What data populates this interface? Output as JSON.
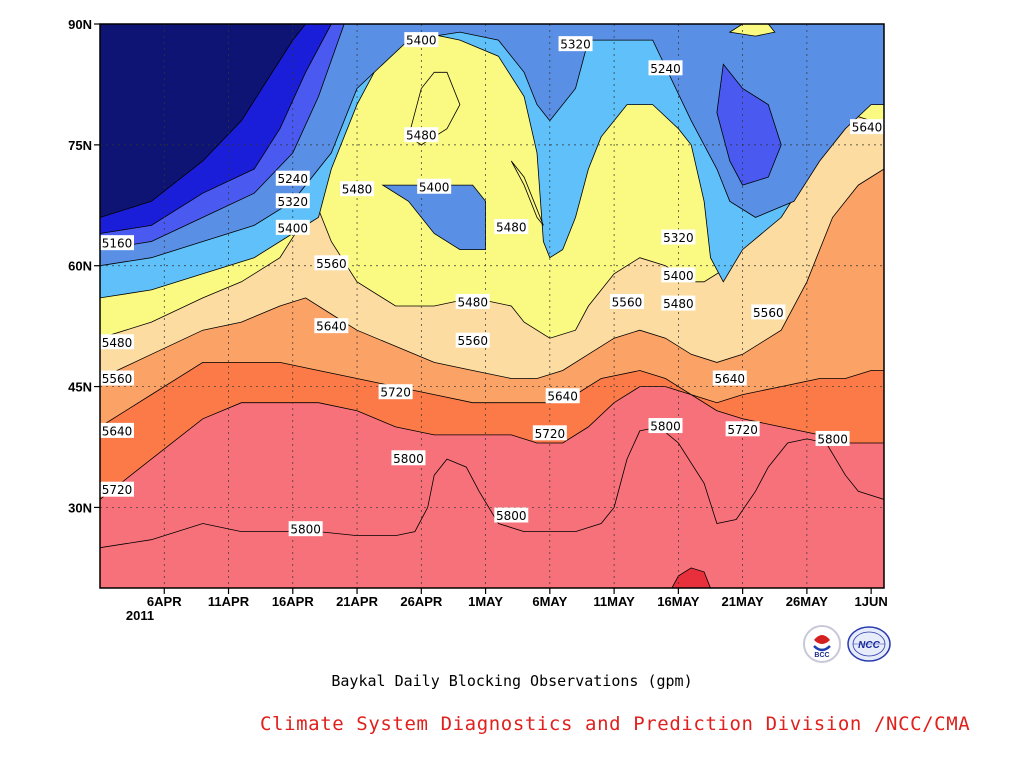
{
  "chart_data": {
    "type": "heatmap",
    "title": "Baykal Daily Blocking Observations (gpm)",
    "xlabel": "",
    "ylabel": "",
    "x_range": [
      "2011-04-01",
      "2011-06-01"
    ],
    "y_range": [
      20,
      90
    ],
    "x_ticks": [
      "6APR",
      "11APR",
      "16APR",
      "21APR",
      "26APR",
      "1MAY",
      "6MAY",
      "11MAY",
      "16MAY",
      "21MAY",
      "26MAY",
      "1JUN"
    ],
    "x_tick_sublabel": "2011",
    "y_ticks": [
      "90N",
      "75N",
      "60N",
      "45N",
      "30N"
    ],
    "y_tick_values": [
      90,
      75,
      60,
      45,
      30
    ],
    "grid": "dotted",
    "contour_levels": [
      5160,
      5240,
      5320,
      5400,
      5480,
      5560,
      5640,
      5720,
      5800,
      5880
    ],
    "level_colors": [
      "#0d1473",
      "#1a1ed8",
      "#4a5af0",
      "#5a8fe6",
      "#5fc0fa",
      "#fafa82",
      "#fcdca0",
      "#fba266",
      "#fb7a48",
      "#f7717a",
      "#e8303c"
    ],
    "contour_labels": [
      {
        "text": "5400",
        "x": "2011-04-26",
        "y": 88.0
      },
      {
        "text": "5320",
        "x": "2011-05-08",
        "y": 87.5
      },
      {
        "text": "5240",
        "x": "2011-05-15",
        "y": 84.5
      },
      {
        "text": "5480",
        "x": "2011-04-26",
        "y": 76.2
      },
      {
        "text": "5240",
        "x": "2011-04-16",
        "y": 70.8
      },
      {
        "text": "5320",
        "x": "2011-04-16",
        "y": 68.0
      },
      {
        "text": "5400",
        "x": "2011-04-16",
        "y": 64.7
      },
      {
        "text": "5160",
        "x": "2011-04-01",
        "y": 62.8
      },
      {
        "text": "5480",
        "x": "2011-04-21",
        "y": 69.5
      },
      {
        "text": "5400",
        "x": "2011-04-27",
        "y": 69.8
      },
      {
        "text": "5480",
        "x": "2011-05-03",
        "y": 64.8
      },
      {
        "text": "5320",
        "x": "2011-05-16",
        "y": 63.5
      },
      {
        "text": "5400",
        "x": "2011-05-16",
        "y": 58.8
      },
      {
        "text": "5480",
        "x": "2011-05-16",
        "y": 55.3
      },
      {
        "text": "5560",
        "x": "2011-04-19",
        "y": 60.3
      },
      {
        "text": "5560",
        "x": "2011-05-12",
        "y": 55.5
      },
      {
        "text": "5480",
        "x": "2011-04-30",
        "y": 55.5
      },
      {
        "text": "5560",
        "x": "2011-05-23",
        "y": 54.2
      },
      {
        "text": "5640",
        "x": "2011-05-31",
        "y": 77.2
      },
      {
        "text": "5480",
        "x": "2011-04-01",
        "y": 50.5
      },
      {
        "text": "5560",
        "x": "2011-04-02",
        "y": 46.0
      },
      {
        "text": "5560",
        "x": "2011-04-30",
        "y": 50.7
      },
      {
        "text": "5640",
        "x": "2011-04-19",
        "y": 52.5
      },
      {
        "text": "5720",
        "x": "2011-04-24",
        "y": 44.3
      },
      {
        "text": "5640",
        "x": "2011-05-07",
        "y": 43.8
      },
      {
        "text": "5640",
        "x": "2011-05-20",
        "y": 46.0
      },
      {
        "text": "5640",
        "x": "2011-04-01",
        "y": 39.5
      },
      {
        "text": "5720",
        "x": "2011-05-06",
        "y": 39.2
      },
      {
        "text": "5800",
        "x": "2011-05-15",
        "y": 40.1
      },
      {
        "text": "5720",
        "x": "2011-05-21",
        "y": 39.7
      },
      {
        "text": "5800",
        "x": "2011-05-28",
        "y": 38.5
      },
      {
        "text": "5800",
        "x": "2011-04-25",
        "y": 36.1
      },
      {
        "text": "5720",
        "x": "2011-04-01",
        "y": 32.2
      },
      {
        "text": "5800",
        "x": "2011-05-03",
        "y": 29.0
      },
      {
        "text": "5800",
        "x": "2011-04-17",
        "y": 27.3
      }
    ]
  },
  "logos": [
    "BCC",
    "NCC"
  ],
  "credit": "Climate System Diagnostics and Prediction Division /NCC/CMA"
}
